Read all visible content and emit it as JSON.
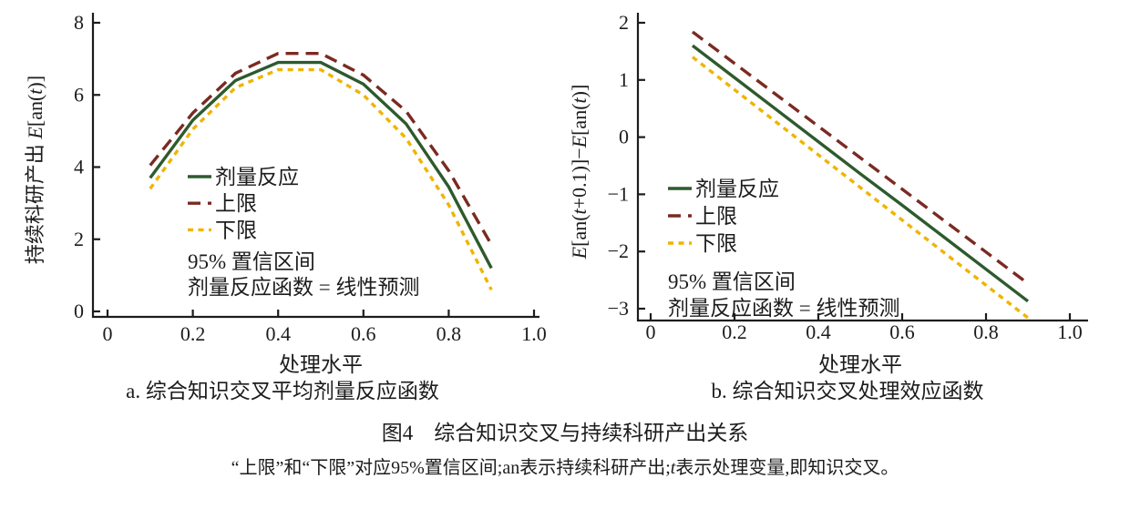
{
  "figure": {
    "caption": "图4　综合知识交叉与持续科研产出关系",
    "note": "“上限”和“下限”对应95%置信区间;an表示持续科研产出;t表示处理变量,即知识交叉。",
    "note_segments": [
      [
        "“上限”和“下限”对应95%置信区间;an表示持续科研产出;",
        0
      ],
      [
        "t",
        1
      ],
      [
        "表示处理变量,即知识交叉。",
        0
      ]
    ]
  },
  "colors": {
    "dose": "#2e5a2d",
    "upper": "#7b2a22",
    "lower": "#f0b400",
    "axis": "#1c1c1c",
    "text": "#1c1c1c"
  },
  "chart_data": [
    {
      "type": "line",
      "panel": "a",
      "subtitle": "a. 综合知识交叉平均剂量反应函数",
      "xlabel": "处理水平",
      "ylabel": "持续科研产出 E[an(t)]",
      "ylabel_segments": [
        [
          "持续科研产出 ",
          0
        ],
        [
          "E",
          1
        ],
        [
          "[an(",
          0
        ],
        [
          "t",
          1
        ],
        [
          ")]",
          0
        ]
      ],
      "xlim": [
        0,
        1
      ],
      "ylim": [
        0,
        8
      ],
      "xticks": [
        {
          "v": 0,
          "label": "0"
        },
        {
          "v": 0.2,
          "label": "0.2"
        },
        {
          "v": 0.4,
          "label": "0.4"
        },
        {
          "v": 0.6,
          "label": "0.6"
        },
        {
          "v": 0.8,
          "label": "0.8"
        },
        {
          "v": 1.0,
          "label": "1.0"
        }
      ],
      "yticks": [
        {
          "v": 0,
          "label": "0"
        },
        {
          "v": 2,
          "label": "2"
        },
        {
          "v": 4,
          "label": "4"
        },
        {
          "v": 6,
          "label": "6"
        },
        {
          "v": 8,
          "label": "8"
        }
      ],
      "x": [
        0.1,
        0.2,
        0.3,
        0.4,
        0.5,
        0.6,
        0.7,
        0.8,
        0.9
      ],
      "series": [
        {
          "name": "剂量反应",
          "line": "solid",
          "color": "dose",
          "values": [
            3.7,
            5.3,
            6.4,
            6.9,
            6.9,
            6.3,
            5.2,
            3.45,
            1.2
          ]
        },
        {
          "name": "上限",
          "line": "dashed",
          "color": "upper",
          "values": [
            4.05,
            5.5,
            6.6,
            7.15,
            7.15,
            6.55,
            5.55,
            3.9,
            1.85
          ]
        },
        {
          "name": "下限",
          "line": "dotted",
          "color": "lower",
          "values": [
            3.4,
            5.05,
            6.2,
            6.7,
            6.7,
            6.0,
            4.8,
            2.95,
            0.6
          ]
        }
      ],
      "legend_note": [
        "95% 置信区间",
        "剂量反应函数 = 线性预测"
      ]
    },
    {
      "type": "line",
      "panel": "b",
      "subtitle": "b. 综合知识交叉处理效应函数",
      "xlabel": "处理水平",
      "ylabel": "E[an(t+0.1)]−E[an(t)]",
      "ylabel_segments": [
        [
          "E",
          1
        ],
        [
          "[an(",
          0
        ],
        [
          "t",
          1
        ],
        [
          "+0.1)]−",
          0
        ],
        [
          "E",
          1
        ],
        [
          "[an(",
          0
        ],
        [
          "t",
          1
        ],
        [
          ")]",
          0
        ]
      ],
      "xlim": [
        0,
        1
      ],
      "ylim": [
        -3,
        2
      ],
      "xticks": [
        {
          "v": 0,
          "label": "0"
        },
        {
          "v": 0.2,
          "label": "0.2"
        },
        {
          "v": 0.4,
          "label": "0.4"
        },
        {
          "v": 0.6,
          "label": "0.6"
        },
        {
          "v": 0.8,
          "label": "0.8"
        },
        {
          "v": 1.0,
          "label": "1.0"
        }
      ],
      "yticks": [
        {
          "v": 2,
          "label": "2"
        },
        {
          "v": 1,
          "label": "1"
        },
        {
          "v": 0,
          "label": "0"
        },
        {
          "v": -1,
          "label": "−1"
        },
        {
          "v": -2,
          "label": "−2"
        },
        {
          "v": -3,
          "label": "−3"
        }
      ],
      "x": [
        0.1,
        0.2,
        0.3,
        0.4,
        0.5,
        0.6,
        0.7,
        0.8,
        0.9
      ],
      "series": [
        {
          "name": "剂量反应",
          "line": "solid",
          "color": "dose",
          "values": [
            1.6,
            1.04,
            0.48,
            -0.08,
            -0.64,
            -1.19,
            -1.75,
            -2.31,
            -2.87
          ]
        },
        {
          "name": "上限",
          "line": "dashed",
          "color": "upper",
          "values": [
            1.84,
            1.29,
            0.74,
            0.19,
            -0.36,
            -0.91,
            -1.46,
            -2.01,
            -2.56
          ]
        },
        {
          "name": "下限",
          "line": "dotted",
          "color": "lower",
          "values": [
            1.4,
            0.83,
            0.26,
            -0.31,
            -0.88,
            -1.45,
            -2.02,
            -2.59,
            -3.16
          ]
        }
      ],
      "legend_note": [
        "95% 置信区间",
        "剂量反应函数 = 线性预测"
      ]
    }
  ]
}
